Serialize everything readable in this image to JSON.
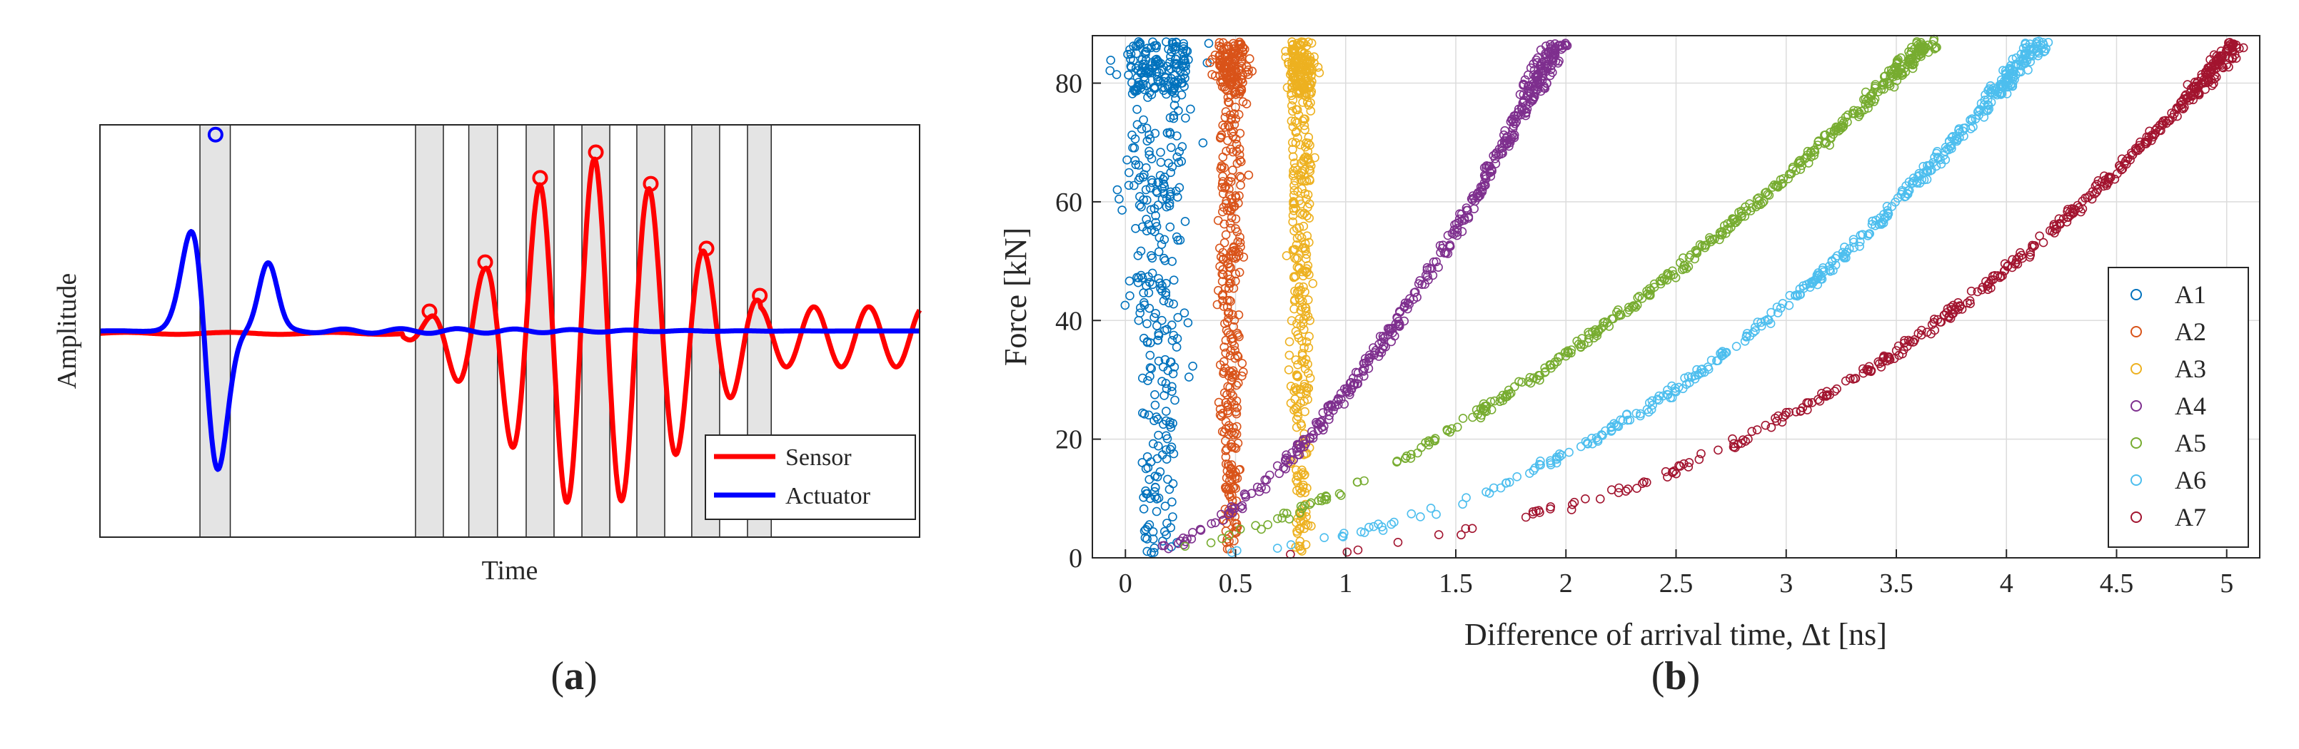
{
  "panels": {
    "a": {
      "caption": "(a)",
      "caption_letter": "a"
    },
    "b": {
      "caption": "(b)",
      "caption_letter": "b"
    }
  },
  "colors": {
    "sensor": "#ff0000",
    "actuator": "#0000ff",
    "window_fill": "#e4e4e4",
    "A1": "#0072bd",
    "A2": "#d95319",
    "A3": "#edb120",
    "A4": "#7e2f8e",
    "A5": "#77ac30",
    "A6": "#4dbeee",
    "A7": "#a2142f"
  },
  "chart_data": [
    {
      "id": "a",
      "type": "line",
      "title": "",
      "xlabel": "Time",
      "ylabel": "Amplitude",
      "xlim": [
        0,
        100
      ],
      "ylim": [
        -1.05,
        1.05
      ],
      "legend": {
        "placement": "bottom-right",
        "entries": [
          "Sensor",
          "Actuator"
        ]
      },
      "series": [
        {
          "name": "Actuator",
          "color_key": "actuator",
          "pulses": [
            {
              "center": 11.6,
              "amp": 0.61,
              "width": 2.1,
              "freq": 0.11
            },
            {
              "center": 14.1,
              "amp": -0.83,
              "width": 1.9,
              "freq": 0.1
            },
            {
              "center": 20.5,
              "amp": 0.35,
              "width": 1.6,
              "freq": 0.12
            }
          ],
          "marker_peaks": [
            {
              "x": 14.1,
              "y": 1.0
            }
          ]
        },
        {
          "name": "Sensor",
          "color_key": "sensor",
          "oscillation": {
            "start": 37,
            "period": 6.7,
            "decay_after": 83
          },
          "marker_peaks": [
            {
              "x": 40.2,
              "y": 0.1
            },
            {
              "x": 47.0,
              "y": 0.35
            },
            {
              "x": 53.7,
              "y": 0.78
            },
            {
              "x": 60.5,
              "y": 0.91
            },
            {
              "x": 67.2,
              "y": 0.75
            },
            {
              "x": 74.0,
              "y": 0.42
            },
            {
              "x": 80.5,
              "y": 0.18
            }
          ]
        }
      ],
      "windows": [
        {
          "x0": 12.2,
          "x1": 15.9
        },
        {
          "x0": 38.5,
          "x1": 41.9
        },
        {
          "x0": 45.0,
          "x1": 48.5
        },
        {
          "x0": 52.0,
          "x1": 55.4
        },
        {
          "x0": 58.8,
          "x1": 62.2
        },
        {
          "x0": 65.5,
          "x1": 68.9
        },
        {
          "x0": 72.2,
          "x1": 75.6
        },
        {
          "x0": 79.0,
          "x1": 81.9
        }
      ]
    },
    {
      "id": "b",
      "type": "scatter",
      "title": "",
      "xlabel": "Difference of arrival time, Δt [ns]",
      "ylabel": "Force [kN]",
      "xlim": [
        -0.15,
        5.15
      ],
      "ylim": [
        0,
        88
      ],
      "xticks": [
        0,
        0.5,
        1,
        1.5,
        2,
        2.5,
        3,
        3.5,
        4,
        4.5,
        5
      ],
      "xtick_labels": [
        "0",
        "0.5",
        "1",
        "1.5",
        "2",
        "2.5",
        "3",
        "3.5",
        "4",
        "4.5",
        "5"
      ],
      "yticks": [
        0,
        20,
        40,
        60,
        80
      ],
      "ytick_labels": [
        "0",
        "20",
        "40",
        "60",
        "80"
      ],
      "grid": true,
      "legend": {
        "placement": "right-middle",
        "entries": [
          "A1",
          "A2",
          "A3",
          "A4",
          "A5",
          "A6",
          "A7"
        ]
      },
      "series": [
        {
          "name": "A1",
          "color_key": "A1",
          "kind": "band",
          "x_center": 0.15,
          "x_spread": 0.27,
          "f_min": 0.5,
          "f_max": 87,
          "max_dt": 5.0
        },
        {
          "name": "A2",
          "color_key": "A2",
          "kind": "band",
          "x_center": 0.48,
          "x_spread": 0.11,
          "f_min": 0.5,
          "f_max": 87,
          "max_dt": 5.0
        },
        {
          "name": "A3",
          "color_key": "A3",
          "kind": "band",
          "x_center": 0.8,
          "x_spread": 0.1,
          "f_min": 0.5,
          "f_max": 87,
          "max_dt": 5.0
        },
        {
          "name": "A4",
          "color_key": "A4",
          "kind": "curve",
          "F_at_max": 87,
          "max_dt": 1.96,
          "exponent": 1.7
        },
        {
          "name": "A5",
          "color_key": "A5",
          "kind": "curve",
          "F_at_max": 87,
          "max_dt": 3.65,
          "exponent": 1.55
        },
        {
          "name": "A6",
          "color_key": "A6",
          "kind": "curve",
          "F_at_max": 87,
          "max_dt": 4.15,
          "exponent": 2.2
        },
        {
          "name": "A7",
          "color_key": "A7",
          "kind": "curve",
          "F_at_max": 87,
          "max_dt": 5.05,
          "exponent": 2.5
        }
      ]
    }
  ]
}
